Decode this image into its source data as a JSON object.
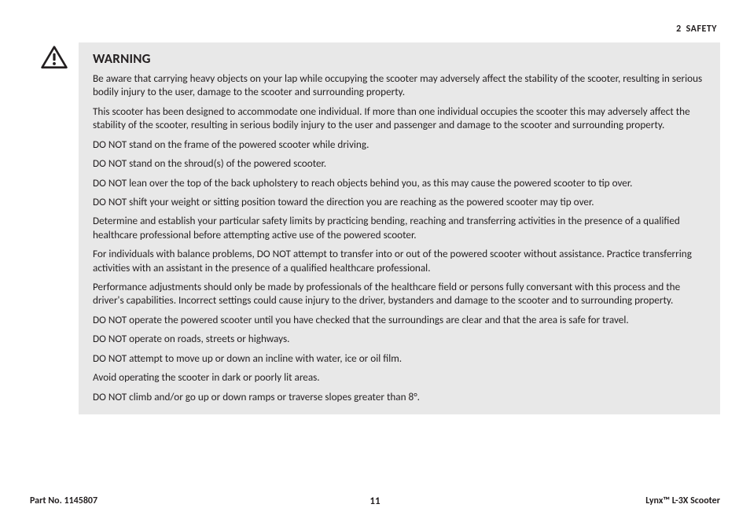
{
  "header": {
    "section_number": "2",
    "section_title": "SAFETY"
  },
  "warning": {
    "title": "WARNING",
    "paragraphs": [
      "Be aware that carrying heavy objects on your lap while occupying the scooter may adversely affect the stability of the scooter, resulting in serious bodily injury to the user, damage to the scooter and surrounding property.",
      "This scooter has been designed to accommodate one individual. If more than one individual occupies the scooter this may adversely affect the stability of the scooter, resulting in serious bodily injury to the user and passenger and damage to the scooter and surrounding property.",
      "DO NOT stand on the frame of the powered scooter while driving.",
      "DO NOT stand on the shroud(s) of the powered scooter.",
      "DO NOT lean over the top of the back upholstery to reach objects behind you, as this may cause the powered scooter to tip over.",
      "DO NOT shift your weight or sitting position toward the direction you are reaching as the powered scooter may tip over.",
      "Determine and establish your particular safety limits by practicing bending, reaching and transferring activities in the presence of a qualified healthcare professional before attempting active use of the powered scooter.",
      "For individuals with balance problems, DO NOT attempt to transfer into or out of the powered scooter without assistance. Practice transferring activities with an assistant in the presence of a qualified healthcare professional.",
      "Performance adjustments should only be made by professionals of the healthcare field or persons fully conversant with this process and the driver's capabilities. Incorrect settings could cause injury to the driver, bystanders and damage to the scooter and to surrounding property.",
      "DO NOT operate the powered scooter until you have checked that the surroundings are clear and that the area is safe for travel.",
      "DO NOT operate on roads, streets or highways.",
      "DO NOT attempt to move up or down an incline with water, ice or oil film.",
      "Avoid operating the scooter in dark or poorly lit areas.",
      "DO NOT climb and/or go up or down ramps or traverse slopes greater than 8°."
    ]
  },
  "footer": {
    "part_no": "Part No. 1145807",
    "page": "11",
    "product": "Lynx™ L-3X Scooter"
  },
  "colors": {
    "page_bg": "#ffffff",
    "box_bg": "#e8e8e8",
    "text": "#231f20"
  }
}
